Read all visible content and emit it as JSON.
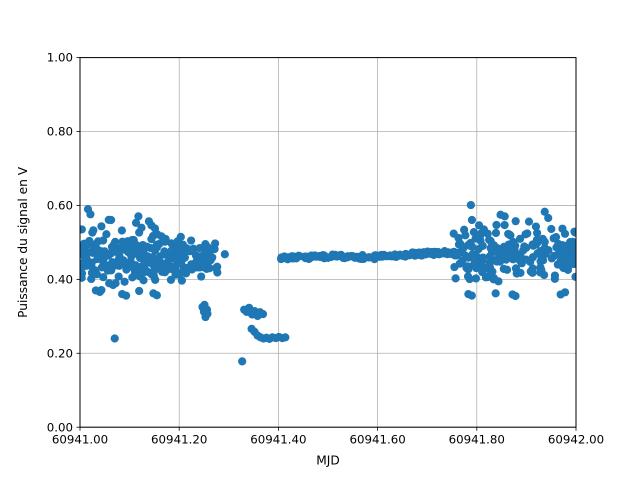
{
  "chart_data": {
    "type": "scatter",
    "title": "",
    "xlabel": "MJD",
    "ylabel": "Puissance du signal en V",
    "xlim": [
      60941.0,
      60942.0
    ],
    "ylim": [
      0.0,
      1.0
    ],
    "x_ticks": [
      60941.0,
      60941.2,
      60941.4,
      60941.6,
      60941.8,
      60942.0
    ],
    "x_tick_labels": [
      "60941.00",
      "60941.20",
      "60941.40",
      "60941.60",
      "60941.80",
      "60942.00"
    ],
    "y_ticks": [
      0.0,
      0.2,
      0.4,
      0.6,
      0.8,
      1.0
    ],
    "y_tick_labels": [
      "0.00",
      "0.20",
      "0.40",
      "0.60",
      "0.80",
      "1.00"
    ],
    "grid": true,
    "grid_color": "#b0b0b0",
    "axes_color": "#000000",
    "marker_color": "#1f77b4",
    "marker_radius_px": 4.1,
    "legend": null,
    "series": [
      {
        "name": "puissance-du-signal",
        "color": "#1f77b4",
        "clusters": [
          {
            "kind": "gauss",
            "seed": 11,
            "n": 175,
            "x_min": 60941.003,
            "x_max": 60941.175,
            "y_mean": 0.468,
            "y_std": 0.041,
            "y_min": 0.366,
            "y_max": 0.592
          },
          {
            "kind": "gauss",
            "seed": 22,
            "n": 90,
            "x_min": 60941.175,
            "x_max": 60941.278,
            "y_mean": 0.456,
            "y_std": 0.026,
            "y_min": 0.394,
            "y_max": 0.528
          },
          {
            "kind": "gauss",
            "seed": 33,
            "n": 190,
            "x_min": 60941.752,
            "x_max": 60941.999,
            "y_mean": 0.468,
            "y_std": 0.041,
            "y_min": 0.357,
            "y_max": 0.597
          },
          {
            "kind": "band",
            "seed": 44,
            "n": 170,
            "x_min": 60941.403,
            "x_max": 60941.768,
            "y_start": 0.457,
            "y_end": 0.47,
            "y_std": 0.0028,
            "y_wiggle": 0.003
          }
        ],
        "points": [
          [
            60941.07,
            0.24
          ],
          [
            60941.292,
            0.468
          ],
          [
            60941.247,
            0.325
          ],
          [
            60941.25,
            0.312
          ],
          [
            60941.253,
            0.298
          ],
          [
            60941.257,
            0.307
          ],
          [
            60941.251,
            0.331
          ],
          [
            60941.256,
            0.318
          ],
          [
            60941.331,
            0.318
          ],
          [
            60941.336,
            0.312
          ],
          [
            60941.341,
            0.323
          ],
          [
            60941.347,
            0.305
          ],
          [
            60941.352,
            0.314
          ],
          [
            60941.358,
            0.301
          ],
          [
            60941.363,
            0.311
          ],
          [
            60941.369,
            0.306
          ],
          [
            60941.327,
            0.178
          ],
          [
            60941.346,
            0.266
          ],
          [
            60941.352,
            0.258
          ],
          [
            60941.358,
            0.248
          ],
          [
            60941.364,
            0.243
          ],
          [
            60941.37,
            0.24
          ],
          [
            60941.376,
            0.242
          ],
          [
            60941.382,
            0.239
          ],
          [
            60941.388,
            0.243
          ],
          [
            60941.395,
            0.241
          ],
          [
            60941.401,
            0.244
          ],
          [
            60941.408,
            0.241
          ],
          [
            60941.414,
            0.243
          ],
          [
            60941.016,
            0.59
          ],
          [
            60941.021,
            0.576
          ],
          [
            60941.058,
            0.561
          ],
          [
            60941.139,
            0.557
          ],
          [
            60941.144,
            0.546
          ],
          [
            60941.788,
            0.601
          ],
          [
            60941.937,
            0.583
          ],
          [
            60941.944,
            0.566
          ],
          [
            60941.032,
            0.37
          ],
          [
            60941.04,
            0.366
          ],
          [
            60941.085,
            0.36
          ],
          [
            60941.093,
            0.356
          ],
          [
            60941.148,
            0.362
          ],
          [
            60941.155,
            0.357
          ],
          [
            60941.783,
            0.36
          ],
          [
            60941.79,
            0.356
          ],
          [
            60941.838,
            0.362
          ],
          [
            60941.872,
            0.359
          ],
          [
            60941.878,
            0.355
          ],
          [
            60941.978,
            0.365
          ]
        ]
      }
    ]
  }
}
